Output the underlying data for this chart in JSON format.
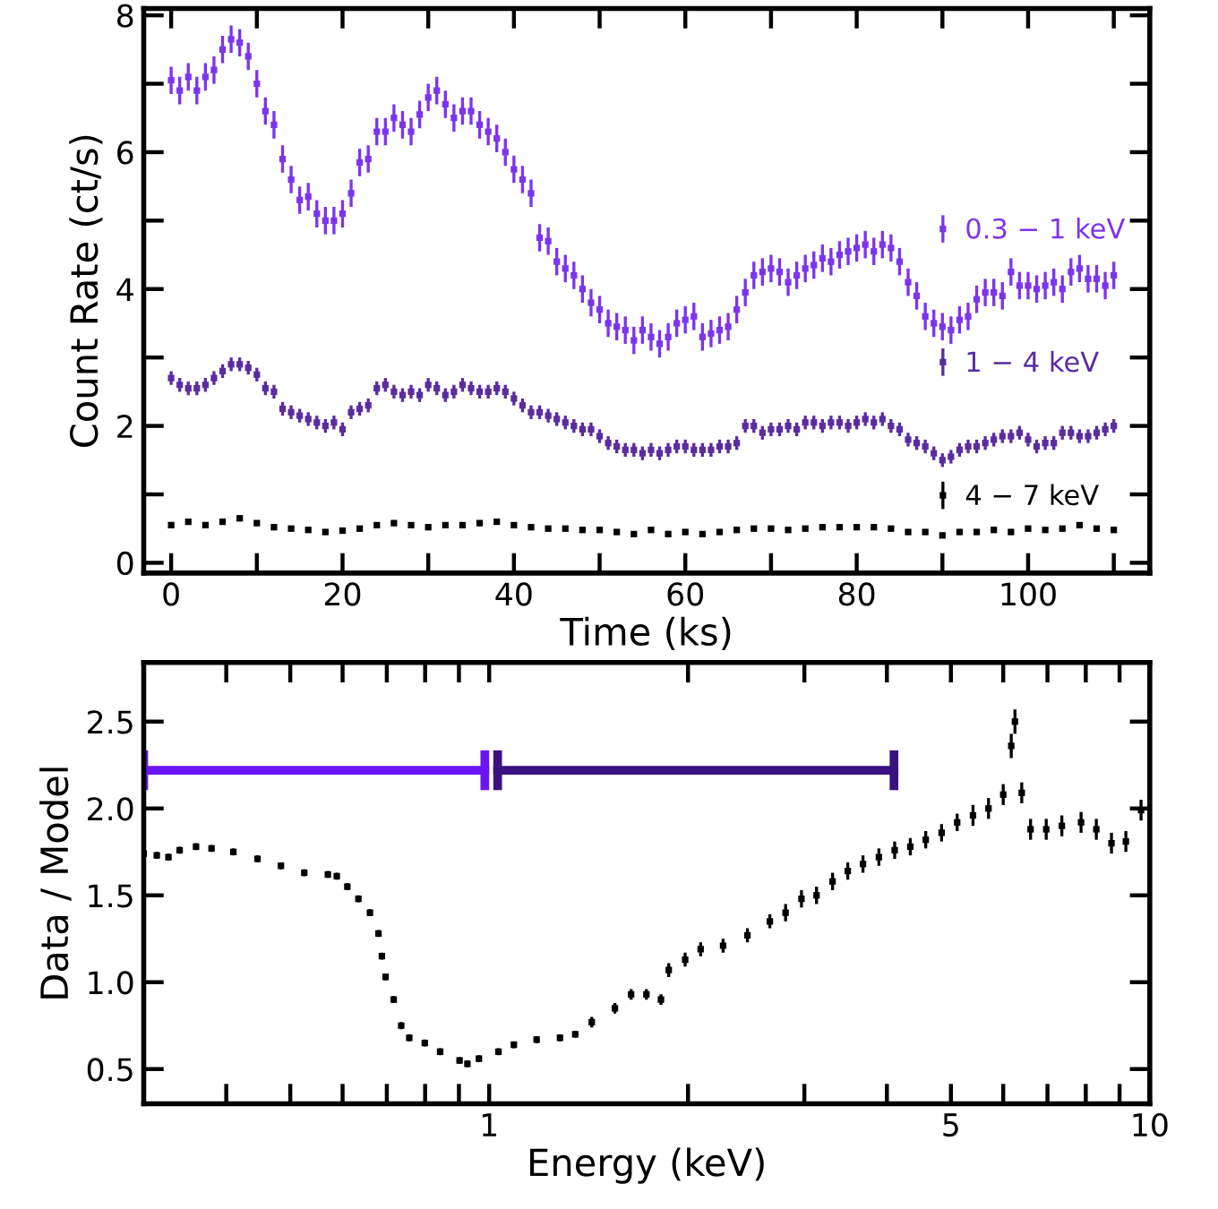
{
  "chart_data": [
    {
      "type": "scatter",
      "xlabel": "Time (ks)",
      "ylabel": "Count Rate (ct/s)",
      "marker": "square",
      "grid": false,
      "legend": "right",
      "xlim": [
        -3.2,
        114.2
      ],
      "ylim": [
        -0.15,
        8.1
      ],
      "xticks": [
        0,
        {
          "value": 10,
          "label": null
        },
        20,
        {
          "value": 30,
          "label": null
        },
        40,
        {
          "value": 50,
          "label": null
        },
        60,
        {
          "value": 70,
          "label": null
        },
        80,
        {
          "value": 90,
          "label": null
        },
        100,
        {
          "value": 110,
          "label": null
        }
      ],
      "yticks": [
        0,
        {
          "value": 1,
          "label": null
        },
        2,
        {
          "value": 3,
          "label": null
        },
        4,
        {
          "value": 5,
          "label": null
        },
        6,
        {
          "value": 7,
          "label": null
        },
        8
      ],
      "series": [
        {
          "name": "0.3 − 1 keV",
          "color": "#7b35ee",
          "x": [
            0,
            1,
            2,
            3,
            4,
            5,
            6,
            7,
            8,
            9,
            10,
            11,
            12,
            13,
            14,
            15,
            16,
            17,
            18,
            19,
            20,
            21,
            22,
            23,
            24,
            25,
            26,
            27,
            28,
            29,
            30,
            31,
            32,
            33,
            34,
            35,
            36,
            37,
            38,
            39,
            40,
            41,
            42,
            43,
            44,
            45,
            46,
            47,
            48,
            49,
            50,
            51,
            52,
            53,
            54,
            55,
            56,
            57,
            58,
            59,
            60,
            61,
            62,
            63,
            64,
            65,
            66,
            67,
            68,
            69,
            70,
            71,
            72,
            73,
            74,
            75,
            76,
            77,
            78,
            79,
            80,
            81,
            82,
            83,
            84,
            85,
            86,
            87,
            88,
            89,
            90,
            91,
            92,
            93,
            94,
            95,
            96,
            97,
            98,
            99,
            100,
            101,
            102,
            103,
            104,
            105,
            106,
            107,
            108,
            109,
            110
          ],
          "values": [
            7.05,
            6.9,
            7.1,
            6.9,
            7.1,
            7.2,
            7.5,
            7.65,
            7.6,
            7.4,
            7.0,
            6.6,
            6.4,
            5.9,
            5.6,
            5.3,
            5.35,
            5.1,
            5.0,
            5.0,
            5.1,
            5.4,
            5.85,
            5.9,
            6.3,
            6.3,
            6.5,
            6.4,
            6.3,
            6.55,
            6.8,
            6.9,
            6.7,
            6.5,
            6.6,
            6.6,
            6.4,
            6.3,
            6.2,
            6.0,
            5.75,
            5.6,
            5.4,
            4.75,
            4.7,
            4.4,
            4.3,
            4.2,
            4.0,
            3.8,
            3.7,
            3.5,
            3.45,
            3.4,
            3.25,
            3.4,
            3.3,
            3.2,
            3.3,
            3.5,
            3.55,
            3.6,
            3.3,
            3.35,
            3.4,
            3.45,
            3.7,
            3.95,
            4.2,
            4.25,
            4.3,
            4.25,
            4.1,
            4.2,
            4.3,
            4.35,
            4.45,
            4.4,
            4.5,
            4.55,
            4.6,
            4.65,
            4.55,
            4.65,
            4.6,
            4.4,
            4.1,
            3.9,
            3.6,
            3.5,
            3.45,
            3.4,
            3.55,
            3.6,
            3.85,
            3.95,
            3.95,
            3.9,
            4.25,
            4.05,
            4.05,
            4.0,
            4.05,
            4.1,
            4.0,
            4.25,
            4.3,
            4.15,
            4.15,
            4.05,
            4.2
          ],
          "errors": [
            0.2,
            0.2,
            0.2,
            0.2,
            0.2,
            0.2,
            0.2,
            0.2,
            0.2,
            0.2,
            0.2,
            0.2,
            0.2,
            0.2,
            0.2,
            0.2,
            0.2,
            0.2,
            0.2,
            0.2,
            0.2,
            0.2,
            0.2,
            0.2,
            0.2,
            0.2,
            0.2,
            0.2,
            0.2,
            0.2,
            0.2,
            0.2,
            0.2,
            0.2,
            0.2,
            0.2,
            0.2,
            0.2,
            0.2,
            0.2,
            0.2,
            0.2,
            0.2,
            0.2,
            0.2,
            0.2,
            0.2,
            0.2,
            0.2,
            0.2,
            0.2,
            0.2,
            0.2,
            0.2,
            0.2,
            0.2,
            0.2,
            0.2,
            0.2,
            0.2,
            0.2,
            0.2,
            0.2,
            0.2,
            0.2,
            0.2,
            0.2,
            0.2,
            0.2,
            0.2,
            0.2,
            0.2,
            0.2,
            0.2,
            0.2,
            0.2,
            0.2,
            0.2,
            0.2,
            0.2,
            0.2,
            0.2,
            0.2,
            0.2,
            0.2,
            0.2,
            0.2,
            0.2,
            0.2,
            0.2,
            0.2,
            0.2,
            0.2,
            0.2,
            0.2,
            0.2,
            0.2,
            0.2,
            0.2,
            0.2,
            0.2,
            0.2,
            0.2,
            0.2,
            0.2,
            0.2,
            0.2,
            0.2,
            0.2,
            0.2,
            0.2
          ]
        },
        {
          "name": "1 − 4 keV",
          "color": "#5a2ca0",
          "x": [
            0,
            1,
            2,
            3,
            4,
            5,
            6,
            7,
            8,
            9,
            10,
            11,
            12,
            13,
            14,
            15,
            16,
            17,
            18,
            19,
            20,
            21,
            22,
            23,
            24,
            25,
            26,
            27,
            28,
            29,
            30,
            31,
            32,
            33,
            34,
            35,
            36,
            37,
            38,
            39,
            40,
            41,
            42,
            43,
            44,
            45,
            46,
            47,
            48,
            49,
            50,
            51,
            52,
            53,
            54,
            55,
            56,
            57,
            58,
            59,
            60,
            61,
            62,
            63,
            64,
            65,
            66,
            67,
            68,
            69,
            70,
            71,
            72,
            73,
            74,
            75,
            76,
            77,
            78,
            79,
            80,
            81,
            82,
            83,
            84,
            85,
            86,
            87,
            88,
            89,
            90,
            91,
            92,
            93,
            94,
            95,
            96,
            97,
            98,
            99,
            100,
            101,
            102,
            103,
            104,
            105,
            106,
            107,
            108,
            109,
            110
          ],
          "values": [
            2.7,
            2.6,
            2.55,
            2.55,
            2.6,
            2.7,
            2.8,
            2.9,
            2.9,
            2.85,
            2.75,
            2.55,
            2.5,
            2.25,
            2.2,
            2.15,
            2.1,
            2.05,
            2.0,
            2.05,
            1.95,
            2.2,
            2.25,
            2.3,
            2.55,
            2.6,
            2.5,
            2.45,
            2.5,
            2.45,
            2.6,
            2.55,
            2.45,
            2.5,
            2.6,
            2.55,
            2.5,
            2.5,
            2.55,
            2.5,
            2.4,
            2.3,
            2.2,
            2.2,
            2.15,
            2.1,
            2.05,
            2.0,
            1.95,
            1.95,
            1.85,
            1.75,
            1.7,
            1.65,
            1.65,
            1.6,
            1.65,
            1.6,
            1.65,
            1.7,
            1.7,
            1.65,
            1.65,
            1.65,
            1.7,
            1.7,
            1.75,
            2.0,
            2.0,
            1.9,
            1.95,
            1.95,
            2.0,
            1.95,
            2.05,
            2.05,
            2.0,
            2.05,
            2.05,
            2.0,
            2.05,
            2.1,
            2.05,
            2.1,
            2.0,
            1.95,
            1.8,
            1.75,
            1.7,
            1.6,
            1.5,
            1.55,
            1.65,
            1.7,
            1.7,
            1.75,
            1.8,
            1.85,
            1.85,
            1.9,
            1.8,
            1.7,
            1.75,
            1.75,
            1.9,
            1.9,
            1.85,
            1.85,
            1.9,
            1.95,
            2.0
          ],
          "errors": [
            0.1,
            0.1,
            0.1,
            0.1,
            0.1,
            0.1,
            0.1,
            0.1,
            0.1,
            0.1,
            0.1,
            0.1,
            0.1,
            0.1,
            0.1,
            0.1,
            0.1,
            0.1,
            0.1,
            0.1,
            0.1,
            0.1,
            0.1,
            0.1,
            0.1,
            0.1,
            0.1,
            0.1,
            0.1,
            0.1,
            0.1,
            0.1,
            0.1,
            0.1,
            0.1,
            0.1,
            0.1,
            0.1,
            0.1,
            0.1,
            0.1,
            0.1,
            0.1,
            0.1,
            0.1,
            0.1,
            0.1,
            0.1,
            0.1,
            0.1,
            0.1,
            0.1,
            0.1,
            0.1,
            0.1,
            0.1,
            0.1,
            0.1,
            0.1,
            0.1,
            0.1,
            0.1,
            0.1,
            0.1,
            0.1,
            0.1,
            0.1,
            0.1,
            0.1,
            0.1,
            0.1,
            0.1,
            0.1,
            0.1,
            0.1,
            0.1,
            0.1,
            0.1,
            0.1,
            0.1,
            0.1,
            0.1,
            0.1,
            0.1,
            0.1,
            0.1,
            0.1,
            0.1,
            0.1,
            0.1,
            0.1,
            0.1,
            0.1,
            0.1,
            0.1,
            0.1,
            0.1,
            0.1,
            0.1,
            0.1,
            0.1,
            0.1,
            0.1,
            0.1,
            0.1,
            0.1,
            0.1,
            0.1,
            0.1,
            0.1,
            0.1
          ]
        },
        {
          "name": "4 − 7 keV",
          "color": "#000000",
          "x": [
            0,
            2,
            4,
            6,
            8,
            10,
            12,
            14,
            16,
            18,
            20,
            22,
            24,
            26,
            28,
            30,
            32,
            34,
            36,
            38,
            40,
            42,
            44,
            46,
            48,
            50,
            52,
            54,
            56,
            58,
            60,
            62,
            64,
            66,
            68,
            70,
            72,
            74,
            76,
            78,
            80,
            82,
            84,
            86,
            88,
            90,
            92,
            94,
            96,
            98,
            100,
            102,
            104,
            106,
            108,
            110
          ],
          "values": [
            0.55,
            0.6,
            0.55,
            0.6,
            0.65,
            0.58,
            0.52,
            0.5,
            0.48,
            0.45,
            0.47,
            0.5,
            0.55,
            0.58,
            0.55,
            0.52,
            0.55,
            0.55,
            0.58,
            0.6,
            0.55,
            0.52,
            0.5,
            0.5,
            0.48,
            0.48,
            0.45,
            0.42,
            0.48,
            0.42,
            0.45,
            0.42,
            0.45,
            0.48,
            0.5,
            0.5,
            0.48,
            0.5,
            0.52,
            0.52,
            0.52,
            0.52,
            0.5,
            0.45,
            0.45,
            0.4,
            0.45,
            0.45,
            0.48,
            0.45,
            0.5,
            0.48,
            0.5,
            0.55,
            0.5,
            0.48
          ],
          "errors": [
            0.04,
            0.04,
            0.04,
            0.04,
            0.04,
            0.04,
            0.04,
            0.04,
            0.04,
            0.04,
            0.04,
            0.04,
            0.04,
            0.04,
            0.04,
            0.04,
            0.04,
            0.04,
            0.04,
            0.04,
            0.04,
            0.04,
            0.04,
            0.04,
            0.04,
            0.04,
            0.04,
            0.04,
            0.04,
            0.04,
            0.04,
            0.04,
            0.04,
            0.04,
            0.04,
            0.04,
            0.04,
            0.04,
            0.04,
            0.04,
            0.04,
            0.04,
            0.04,
            0.04,
            0.04,
            0.04,
            0.04,
            0.04,
            0.04,
            0.04,
            0.04,
            0.04,
            0.04,
            0.04,
            0.04,
            0.04
          ]
        }
      ]
    },
    {
      "type": "scatter",
      "xlabel": "Energy (keV)",
      "ylabel": "Data / Model",
      "marker": "square",
      "grid": false,
      "log": "x",
      "xlim": [
        0.3,
        10
      ],
      "ylim": [
        0.3,
        2.84
      ],
      "xticks": [
        {
          "value": 0.4,
          "label": null
        },
        {
          "value": 0.5,
          "label": null
        },
        {
          "value": 0.6,
          "label": null
        },
        {
          "value": 0.7,
          "label": null
        },
        {
          "value": 0.8,
          "label": null
        },
        {
          "value": 0.9,
          "label": null
        },
        1,
        {
          "value": 2,
          "label": null
        },
        {
          "value": 3,
          "label": null
        },
        {
          "value": 4,
          "label": null
        },
        5,
        {
          "value": 6,
          "label": null
        },
        {
          "value": 7,
          "label": null
        },
        {
          "value": 8,
          "label": null
        },
        {
          "value": 9,
          "label": null
        },
        10
      ],
      "yticks": [
        {
          "value": 0.5,
          "label": "0.5"
        },
        {
          "value": 1.0,
          "label": "1.0"
        },
        1.5,
        {
          "value": 2.0,
          "label": "2.0"
        },
        2.5
      ],
      "series": [
        {
          "color": "#000000",
          "x": [
            0.3,
            0.314,
            0.327,
            0.34,
            0.36,
            0.38,
            0.41,
            0.446,
            0.484,
            0.525,
            0.57,
            0.588,
            0.61,
            0.634,
            0.66,
            0.68,
            0.688,
            0.697,
            0.717,
            0.736,
            0.757,
            0.799,
            0.843,
            0.902,
            0.927,
            0.965,
            1.033,
            1.09,
            1.18,
            1.28,
            1.35,
            1.43,
            1.55,
            1.64,
            1.73,
            1.82,
            1.87,
            1.98,
            2.09,
            2.26,
            2.46,
            2.66,
            2.81,
            2.97,
            3.13,
            3.31,
            3.49,
            3.68,
            3.89,
            4.11,
            4.34,
            4.58,
            4.84,
            5.11,
            5.4,
            5.7,
            6.0,
            6.17,
            6.25,
            6.4,
            6.6,
            6.97,
            7.36,
            7.87,
            8.3,
            8.75,
            9.2,
            9.7
          ],
          "values": [
            1.74,
            1.73,
            1.72,
            1.76,
            1.78,
            1.77,
            1.75,
            1.71,
            1.67,
            1.63,
            1.62,
            1.61,
            1.55,
            1.48,
            1.4,
            1.28,
            1.15,
            1.03,
            0.9,
            0.75,
            0.68,
            0.65,
            0.6,
            0.55,
            0.53,
            0.56,
            0.6,
            0.64,
            0.67,
            0.68,
            0.7,
            0.77,
            0.85,
            0.93,
            0.93,
            0.9,
            1.07,
            1.13,
            1.19,
            1.21,
            1.27,
            1.35,
            1.4,
            1.48,
            1.5,
            1.58,
            1.64,
            1.68,
            1.72,
            1.76,
            1.78,
            1.82,
            1.86,
            1.92,
            1.96,
            2.0,
            2.08,
            2.36,
            2.5,
            2.09,
            1.88,
            1.88,
            1.9,
            1.92,
            1.88,
            1.8,
            1.81,
            1.99
          ],
          "errors": [
            0.02,
            0.02,
            0.02,
            0.02,
            0.02,
            0.02,
            0.02,
            0.02,
            0.02,
            0.02,
            0.02,
            0.02,
            0.02,
            0.02,
            0.02,
            0.02,
            0.02,
            0.02,
            0.02,
            0.02,
            0.02,
            0.02,
            0.02,
            0.02,
            0.02,
            0.02,
            0.02,
            0.02,
            0.02,
            0.02,
            0.02,
            0.03,
            0.03,
            0.03,
            0.03,
            0.03,
            0.04,
            0.04,
            0.04,
            0.04,
            0.04,
            0.04,
            0.05,
            0.05,
            0.05,
            0.05,
            0.05,
            0.05,
            0.05,
            0.05,
            0.05,
            0.05,
            0.05,
            0.05,
            0.06,
            0.06,
            0.06,
            0.07,
            0.07,
            0.06,
            0.06,
            0.06,
            0.06,
            0.06,
            0.06,
            0.06,
            0.06,
            0.06
          ]
        },
        {
          "type": "line",
          "marker": "none",
          "color": "#6a14f5",
          "x": [
            0.3,
            0.985
          ],
          "values": [
            2.22,
            2.22
          ]
        },
        {
          "type": "line",
          "marker": "none",
          "color": "#3a1280",
          "x": [
            1.03,
            4.1
          ],
          "values": [
            2.22,
            2.22
          ]
        }
      ]
    }
  ]
}
